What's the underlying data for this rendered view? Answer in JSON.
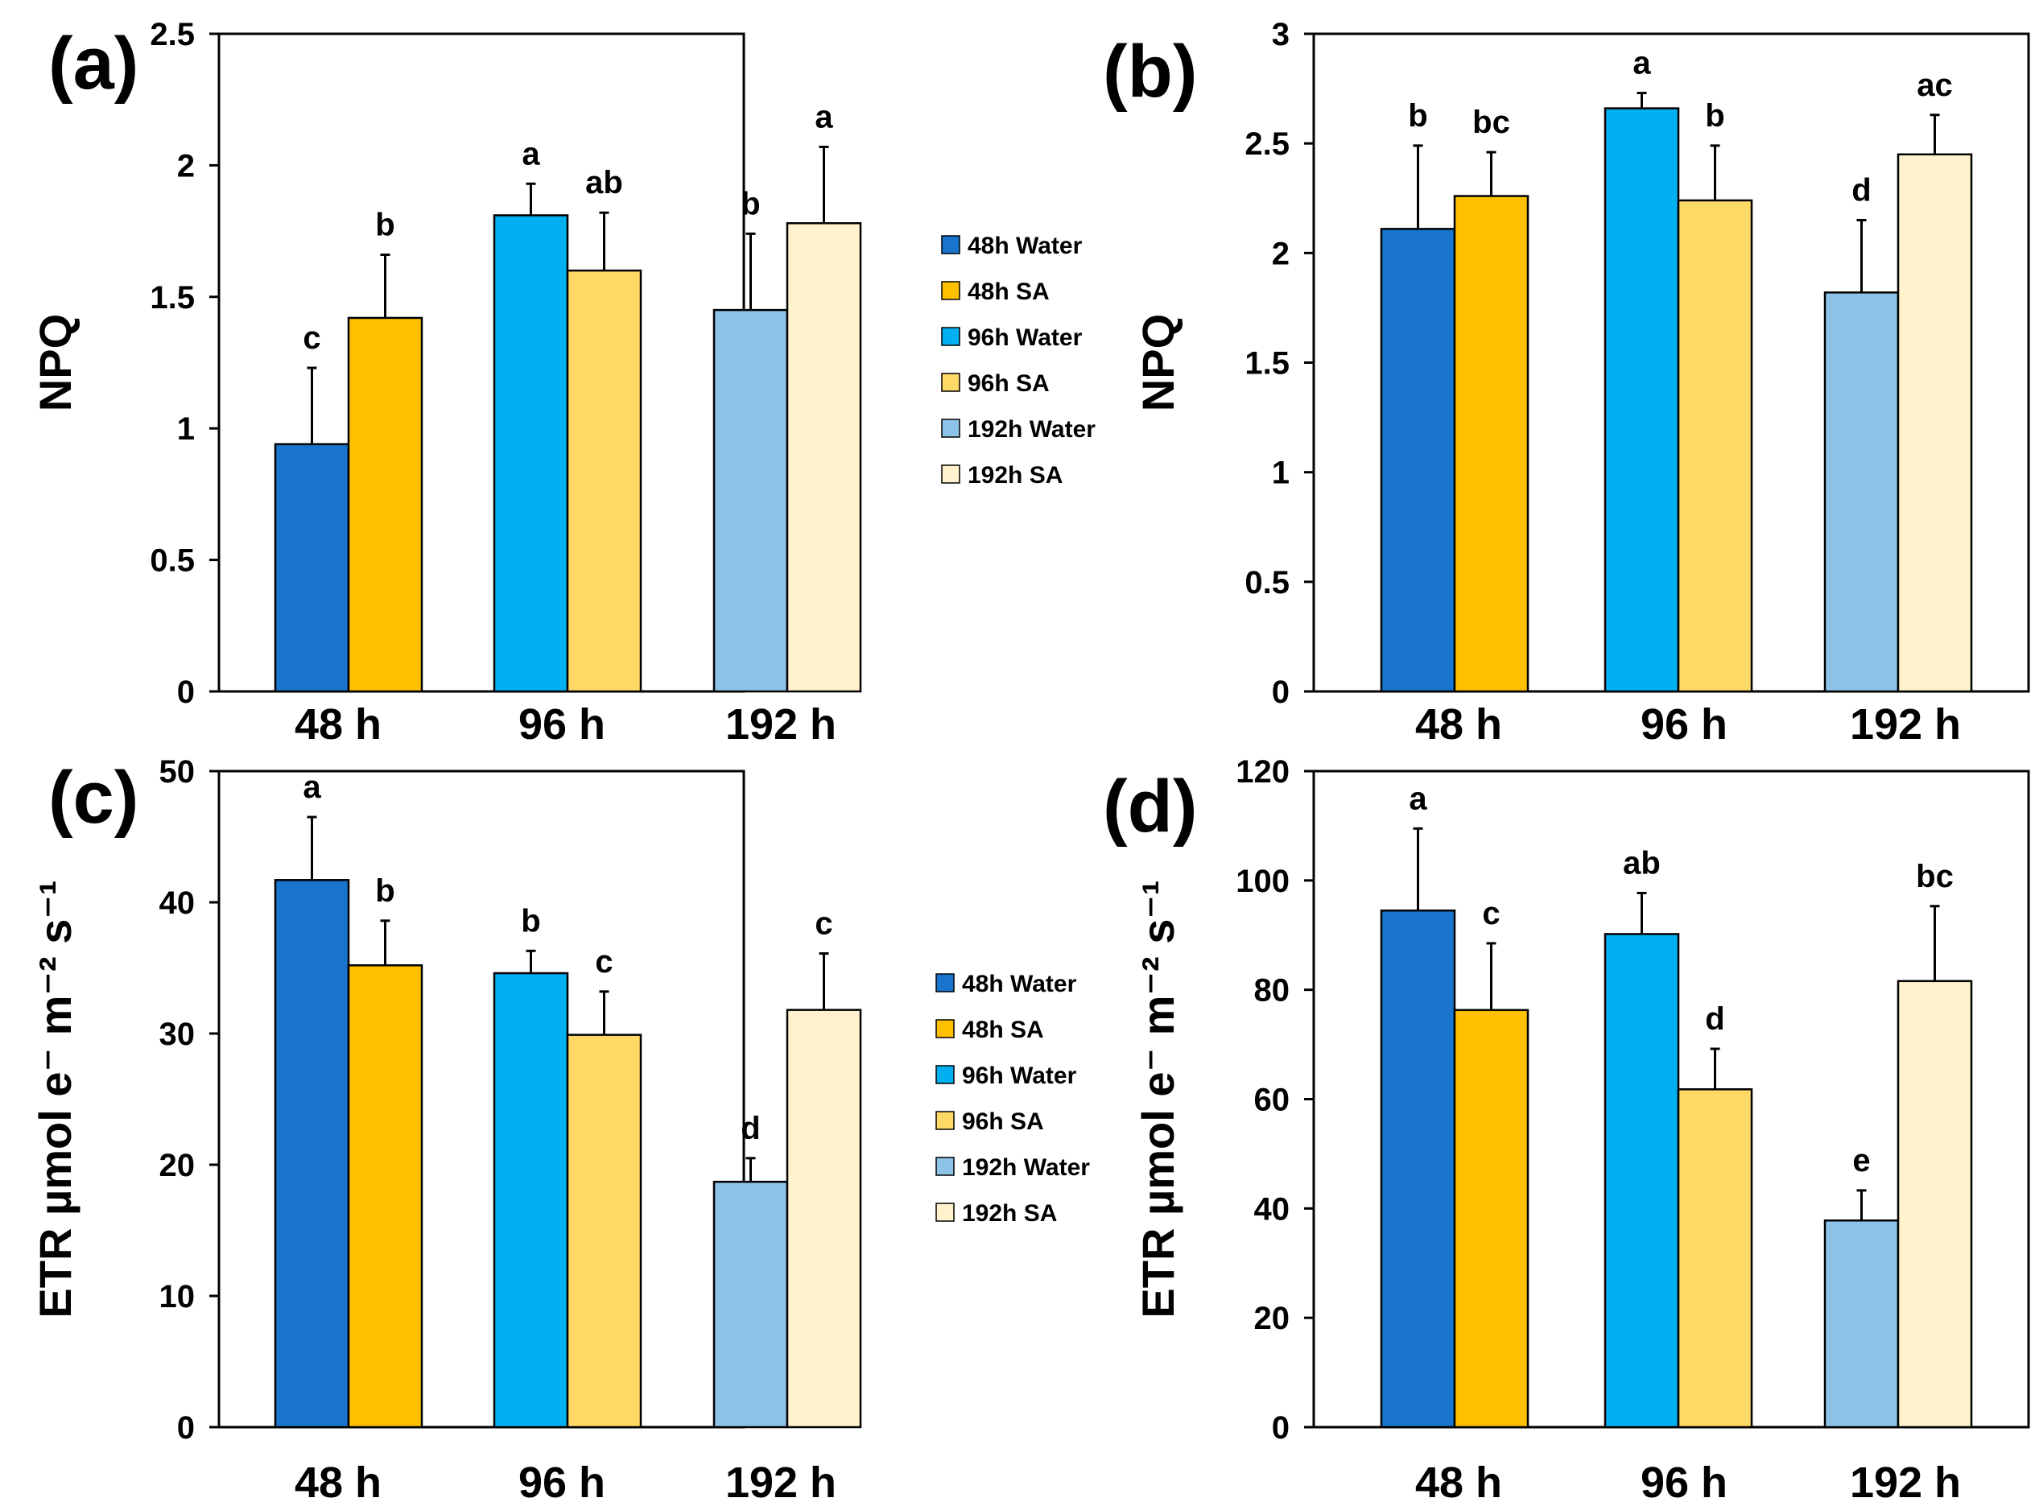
{
  "chart_data": [
    {
      "id": "a",
      "panel_label": "(a)",
      "type": "bar",
      "ylabel": "NPQ",
      "ylim": [
        0,
        2.5
      ],
      "yticks": [
        0,
        0.5,
        1,
        1.5,
        2,
        2.5
      ],
      "ytick_labels": [
        "0",
        "0.5",
        "1",
        "1.5",
        "2",
        "2.5"
      ],
      "categories": [
        "48 h",
        "96 h",
        "192 h"
      ],
      "series": [
        {
          "name": "Water",
          "values": [
            0.94,
            1.81,
            1.45
          ],
          "errors": [
            0.29,
            0.12,
            0.29
          ],
          "letters": [
            "c",
            "a",
            "b"
          ]
        },
        {
          "name": "SA",
          "values": [
            1.42,
            1.6,
            1.78
          ],
          "errors": [
            0.24,
            0.22,
            0.29
          ],
          "letters": [
            "b",
            "ab",
            "a"
          ]
        }
      ],
      "legend": [
        "48h Water",
        "48h SA",
        "96h Water",
        "96h SA",
        "192h Water",
        "192h SA"
      ],
      "legend_position": "right"
    },
    {
      "id": "b",
      "panel_label": "(b)",
      "type": "bar",
      "ylabel": "NPQ",
      "ylim": [
        0,
        3
      ],
      "yticks": [
        0,
        0.5,
        1,
        1.5,
        2,
        2.5,
        3
      ],
      "ytick_labels": [
        "0",
        "0.5",
        "1",
        "1.5",
        "2",
        "2.5",
        "3"
      ],
      "categories": [
        "48 h",
        "96 h",
        "192 h"
      ],
      "series": [
        {
          "name": "Water",
          "values": [
            2.11,
            2.66,
            1.82
          ],
          "errors": [
            0.38,
            0.07,
            0.33
          ],
          "letters": [
            "b",
            "a",
            "d"
          ]
        },
        {
          "name": "SA",
          "values": [
            2.26,
            2.24,
            2.45
          ],
          "errors": [
            0.2,
            0.25,
            0.18
          ],
          "letters": [
            "bc",
            "b",
            "ac"
          ]
        }
      ]
    },
    {
      "id": "c",
      "panel_label": "(c)",
      "type": "bar",
      "ylabel": "ETR µmol e⁻ m⁻² s⁻¹",
      "ylim": [
        0,
        50
      ],
      "yticks": [
        0,
        10,
        20,
        30,
        40,
        50
      ],
      "ytick_labels": [
        "0",
        "10",
        "20",
        "30",
        "40",
        "50"
      ],
      "categories": [
        "48 h",
        "96 h",
        "192 h"
      ],
      "series": [
        {
          "name": "Water",
          "values": [
            41.7,
            34.6,
            18.7
          ],
          "errors": [
            4.8,
            1.7,
            1.8
          ],
          "letters": [
            "a",
            "b",
            "d"
          ]
        },
        {
          "name": "SA",
          "values": [
            35.2,
            29.9,
            31.8
          ],
          "errors": [
            3.4,
            3.3,
            4.3
          ],
          "letters": [
            "b",
            "c",
            "c"
          ]
        }
      ],
      "legend": [
        "48h Water",
        "48h SA",
        "96h Water",
        "96h SA",
        "192h Water",
        "192h SA"
      ],
      "legend_position": "right"
    },
    {
      "id": "d",
      "panel_label": "(d)",
      "type": "bar",
      "ylabel": "ETR µmol e⁻ m⁻² s⁻¹",
      "ylim": [
        0,
        120
      ],
      "yticks": [
        0,
        20,
        40,
        60,
        80,
        100,
        120
      ],
      "ytick_labels": [
        "0",
        "20",
        "40",
        "60",
        "80",
        "100",
        "120"
      ],
      "categories": [
        "48 h",
        "96 h",
        "192 h"
      ],
      "series": [
        {
          "name": "Water",
          "values": [
            94.5,
            90.2,
            37.8
          ],
          "errors": [
            15.0,
            7.5,
            5.5
          ],
          "letters": [
            "a",
            "ab",
            "e"
          ]
        },
        {
          "name": "SA",
          "values": [
            76.3,
            61.8,
            81.6
          ],
          "errors": [
            12.2,
            7.4,
            13.7
          ],
          "letters": [
            "c",
            "d",
            "bc"
          ]
        }
      ]
    }
  ],
  "colors": {
    "48h Water": "#1874CD",
    "48h SA": "#FFC000",
    "96h Water": "#00B0F0",
    "96h SA": "#FFD966",
    "192h Water": "#8DC3E8",
    "192h SA": "#FFF2CC"
  }
}
